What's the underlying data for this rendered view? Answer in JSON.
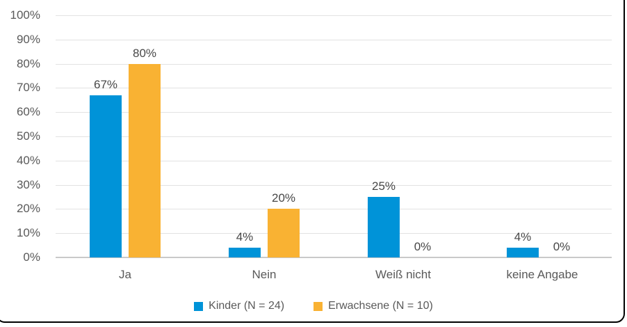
{
  "chart_data": {
    "type": "bar",
    "title": "",
    "xlabel": "",
    "ylabel": "",
    "categories": [
      "Ja",
      "Nein",
      "Weiß nicht",
      "keine Angabe"
    ],
    "series": [
      {
        "name": "Kinder (N = 24)",
        "color": "#0093D8",
        "values": [
          67,
          4,
          25,
          4
        ]
      },
      {
        "name": "Erwachsene (N = 10)",
        "color": "#F9B233",
        "values": [
          80,
          20,
          0,
          0
        ]
      }
    ],
    "value_suffix": "%",
    "ylim": [
      0,
      100
    ],
    "ytick_step": 10,
    "ytick_labels": [
      "0%",
      "10%",
      "20%",
      "30%",
      "40%",
      "50%",
      "60%",
      "70%",
      "80%",
      "90%",
      "100%"
    ],
    "data_labels": {
      "Kinder (N = 24)": [
        "67%",
        "4%",
        "25%",
        "4%"
      ],
      "Erwachsene (N = 10)": [
        "80%",
        "20%",
        "0%",
        "0%"
      ]
    },
    "grid": true,
    "legend_position": "bottom"
  },
  "styles": {
    "gridline_color": "#E2E2E2",
    "baseline_color": "#C9C9C9",
    "axis_text_color": "#595959",
    "data_label_color": "#474747",
    "frame_border_color": "#000000",
    "background_color": "#FFFFFF"
  }
}
